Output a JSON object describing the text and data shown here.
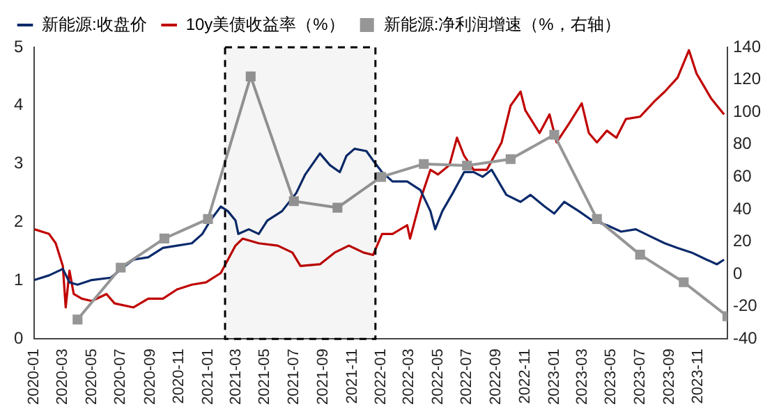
{
  "chart_data": {
    "type": "line",
    "legend": "top",
    "grid": false,
    "xlim": [
      "2020-01",
      "2024-01"
    ],
    "xticks": [
      "2020-01",
      "2020-03",
      "2020-05",
      "2020-07",
      "2020-09",
      "2020-11",
      "2021-01",
      "2021-03",
      "2021-05",
      "2021-07",
      "2021-09",
      "2021-11",
      "2022-01",
      "2022-03",
      "2022-05",
      "2022-07",
      "2022-09",
      "2022-11",
      "2023-01",
      "2023-03",
      "2023-05",
      "2023-07",
      "2023-09",
      "2023-11"
    ],
    "ylim": [
      0,
      5
    ],
    "yticks": [
      0,
      1,
      2,
      3,
      4,
      5
    ],
    "y2lim": [
      -40,
      140
    ],
    "y2ticks": [
      -40,
      -20,
      0,
      20,
      40,
      60,
      80,
      100,
      120,
      140
    ],
    "bands": [
      {
        "axis": "x",
        "from": "2021-02-06",
        "to": "2021-12-20",
        "color": "#000000"
      }
    ],
    "series": [
      {
        "name": "新能源:收盘价",
        "color": "#0b2a6b",
        "x": [
          "2020-01-01",
          "2020-02-01",
          "2020-03-01",
          "2020-03-15",
          "2020-04-01",
          "2020-05-01",
          "2020-06-10",
          "2020-07-10",
          "2020-07-28",
          "2020-08-28",
          "2020-09-28",
          "2020-10-28",
          "2020-11-28",
          "2020-12-20",
          "2021-01-06",
          "2021-01-28",
          "2021-02-12",
          "2021-02-28",
          "2021-03-06",
          "2021-03-28",
          "2021-04-18",
          "2021-05-06",
          "2021-06-06",
          "2021-07-06",
          "2021-07-25",
          "2021-08-25",
          "2021-09-15",
          "2021-10-06",
          "2021-10-20",
          "2021-11-06",
          "2021-12-01",
          "2021-12-15",
          "2022-01-03",
          "2022-01-25",
          "2022-02-25",
          "2022-03-25",
          "2022-04-15",
          "2022-04-25",
          "2022-05-10",
          "2022-06-01",
          "2022-06-25",
          "2022-07-15",
          "2022-08-03",
          "2022-08-22",
          "2022-09-22",
          "2022-10-22",
          "2022-11-12",
          "2022-12-12",
          "2023-01-01",
          "2023-01-22",
          "2023-02-22",
          "2023-03-22",
          "2023-04-22",
          "2023-05-22",
          "2023-06-22",
          "2023-07-22",
          "2023-08-22",
          "2023-09-18",
          "2023-10-18",
          "2023-11-18",
          "2023-12-10",
          "2023-12-25"
        ],
        "values": [
          1.01,
          1.09,
          1.2,
          0.97,
          0.93,
          1.01,
          1.05,
          1.25,
          1.36,
          1.4,
          1.56,
          1.6,
          1.64,
          1.8,
          2.03,
          2.27,
          2.19,
          2.03,
          1.8,
          1.88,
          1.8,
          2.03,
          2.19,
          2.5,
          2.82,
          3.18,
          2.98,
          2.86,
          3.14,
          3.26,
          3.22,
          3.06,
          2.86,
          2.7,
          2.7,
          2.55,
          2.19,
          1.88,
          2.19,
          2.5,
          2.86,
          2.86,
          2.78,
          2.9,
          2.47,
          2.35,
          2.47,
          2.27,
          2.15,
          2.35,
          2.19,
          2.03,
          1.95,
          1.84,
          1.88,
          1.76,
          1.64,
          1.56,
          1.48,
          1.36,
          1.28,
          1.36
        ]
      },
      {
        "name": "10y美债收益率（%）",
        "color": "#c00000",
        "x": [
          "2020-01-01",
          "2020-02-01",
          "2020-02-15",
          "2020-03-01",
          "2020-03-07",
          "2020-03-15",
          "2020-03-24",
          "2020-04-10",
          "2020-05-01",
          "2020-06-01",
          "2020-06-18",
          "2020-07-28",
          "2020-08-28",
          "2020-09-28",
          "2020-10-28",
          "2020-11-28",
          "2020-12-28",
          "2021-01-28",
          "2021-02-28",
          "2021-03-15",
          "2021-04-18",
          "2021-05-28",
          "2021-06-28",
          "2021-07-15",
          "2021-08-25",
          "2021-09-25",
          "2021-10-25",
          "2021-11-25",
          "2021-12-15",
          "2022-01-03",
          "2022-01-25",
          "2022-02-25",
          "2022-03-03",
          "2022-03-25",
          "2022-04-15",
          "2022-05-01",
          "2022-05-25",
          "2022-06-10",
          "2022-06-25",
          "2022-07-15",
          "2022-08-12",
          "2022-09-12",
          "2022-10-01",
          "2022-10-22",
          "2022-11-01",
          "2022-12-01",
          "2022-12-22",
          "2023-01-06",
          "2023-02-01",
          "2023-02-28",
          "2023-03-15",
          "2023-04-01",
          "2023-04-22",
          "2023-05-12",
          "2023-06-01",
          "2023-07-01",
          "2023-08-01",
          "2023-08-22",
          "2023-09-18",
          "2023-10-12",
          "2023-10-28",
          "2023-11-28",
          "2023-12-25"
        ],
        "values": [
          1.88,
          1.8,
          1.64,
          1.25,
          0.54,
          1.17,
          0.77,
          0.69,
          0.65,
          0.77,
          0.61,
          0.54,
          0.69,
          0.69,
          0.85,
          0.93,
          0.97,
          1.13,
          1.6,
          1.72,
          1.64,
          1.6,
          1.48,
          1.25,
          1.28,
          1.48,
          1.6,
          1.48,
          1.44,
          1.8,
          1.8,
          1.95,
          1.72,
          2.39,
          2.9,
          2.82,
          2.98,
          3.45,
          3.14,
          2.9,
          2.9,
          3.37,
          4.0,
          4.24,
          3.92,
          3.53,
          3.85,
          3.37,
          3.69,
          4.04,
          3.53,
          3.37,
          3.57,
          3.45,
          3.77,
          3.81,
          4.08,
          4.24,
          4.48,
          4.95,
          4.55,
          4.12,
          3.85
        ]
      },
      {
        "name": "新能源:净利润增速（%，右轴）",
        "color": "#969696",
        "axis": "y2",
        "marker": "square",
        "x": [
          "2020-04",
          "2020-07",
          "2020-10",
          "2021-01",
          "2021-04",
          "2021-07",
          "2021-10",
          "2022-01",
          "2022-04",
          "2022-07",
          "2022-10",
          "2023-01",
          "2023-04",
          "2023-07",
          "2023-10",
          "2024-01"
        ],
        "values": [
          -28,
          4,
          22,
          34,
          122,
          45,
          41,
          60,
          68,
          67,
          71,
          86,
          34,
          12,
          -5,
          -26
        ]
      }
    ]
  }
}
